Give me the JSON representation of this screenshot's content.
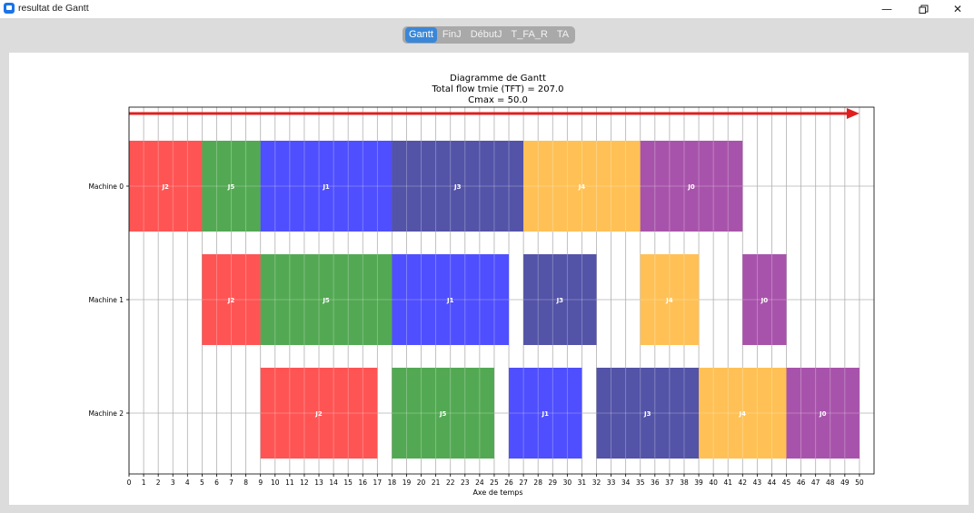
{
  "window": {
    "title": "resultat de Gantt",
    "minimize_icon": "minimize-icon",
    "maximize_icon": "restore-icon",
    "close_icon": "close-icon"
  },
  "tabs": [
    {
      "label": "Gantt",
      "active": true
    },
    {
      "label": "FinJ",
      "active": false
    },
    {
      "label": "DébutJ",
      "active": false
    },
    {
      "label": "T_FA_R",
      "active": false
    },
    {
      "label": "TA",
      "active": false
    }
  ],
  "chart": {
    "title_lines": [
      "Diagramme de Gantt",
      "Total flow tmie (TFT) = 207.0",
      "Cmax = 50.0"
    ]
  },
  "chart_data": {
    "type": "gantt",
    "xlabel": "Axe de temps",
    "xlim": [
      0,
      51
    ],
    "xticks": [
      0,
      1,
      2,
      3,
      4,
      5,
      6,
      7,
      8,
      9,
      10,
      11,
      12,
      13,
      14,
      15,
      16,
      17,
      18,
      19,
      20,
      21,
      22,
      23,
      24,
      25,
      26,
      27,
      28,
      29,
      30,
      31,
      32,
      33,
      34,
      35,
      36,
      37,
      38,
      39,
      40,
      41,
      42,
      43,
      44,
      45,
      46,
      47,
      48,
      49,
      50
    ],
    "grid": true,
    "machines": [
      "Machine 0",
      "Machine 1",
      "Machine 2"
    ],
    "job_colors": {
      "J0": "#a34aa6",
      "J1": "#4646ff",
      "J2": "#ff4b4b",
      "J3": "#4a4aa3",
      "J4": "#ffbe4c",
      "J5": "#4aa44a"
    },
    "tasks": [
      {
        "machine": 0,
        "job": "J2",
        "start": 0,
        "end": 5
      },
      {
        "machine": 0,
        "job": "J5",
        "start": 5,
        "end": 9
      },
      {
        "machine": 0,
        "job": "J1",
        "start": 9,
        "end": 18
      },
      {
        "machine": 0,
        "job": "J3",
        "start": 18,
        "end": 27
      },
      {
        "machine": 0,
        "job": "J4",
        "start": 27,
        "end": 35
      },
      {
        "machine": 0,
        "job": "J0",
        "start": 35,
        "end": 42
      },
      {
        "machine": 1,
        "job": "J2",
        "start": 5,
        "end": 9
      },
      {
        "machine": 1,
        "job": "J5",
        "start": 9,
        "end": 18
      },
      {
        "machine": 1,
        "job": "J1",
        "start": 18,
        "end": 26
      },
      {
        "machine": 1,
        "job": "J3",
        "start": 27,
        "end": 32
      },
      {
        "machine": 1,
        "job": "J4",
        "start": 35,
        "end": 39
      },
      {
        "machine": 1,
        "job": "J0",
        "start": 42,
        "end": 45
      },
      {
        "machine": 2,
        "job": "J2",
        "start": 9,
        "end": 17
      },
      {
        "machine": 2,
        "job": "J5",
        "start": 18,
        "end": 25
      },
      {
        "machine": 2,
        "job": "J1",
        "start": 26,
        "end": 31
      },
      {
        "machine": 2,
        "job": "J3",
        "start": 32,
        "end": 39
      },
      {
        "machine": 2,
        "job": "J4",
        "start": 39,
        "end": 45
      },
      {
        "machine": 2,
        "job": "J0",
        "start": 45,
        "end": 50
      }
    ],
    "arrow": {
      "from": 0,
      "to": 50,
      "color": "#e02020"
    }
  }
}
